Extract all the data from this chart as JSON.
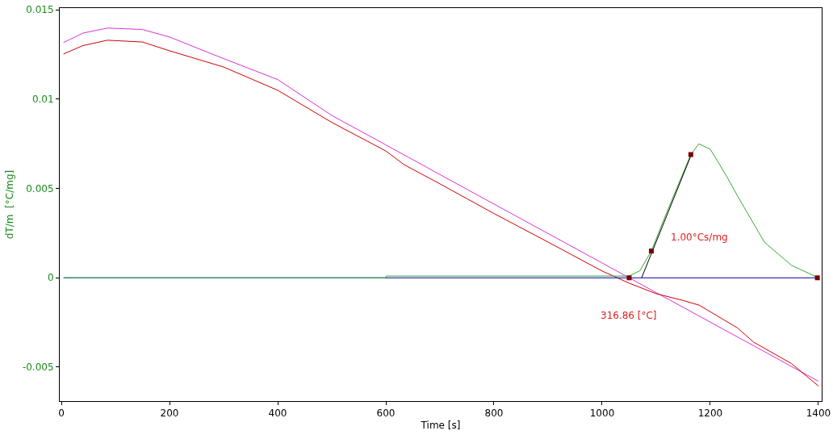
{
  "chart_data": {
    "type": "line",
    "xlabel": "Time [s]",
    "ylabel": "dT/m  [°C/mg]",
    "xlim": [
      -3,
      1406
    ],
    "ylim": [
      -0.0069,
      0.0151
    ],
    "xticks": [
      0,
      200,
      400,
      600,
      800,
      1000,
      1200,
      1400
    ],
    "yticks": [
      -0.005,
      0,
      0.005,
      0.01,
      0.015
    ],
    "grid": false,
    "annotations": [
      "316.86 [°C]",
      "1.00°Cs/mg"
    ],
    "series": [
      {
        "color": "#d633d6",
        "x": [
          4,
          40,
          85,
          150,
          200,
          300,
          400,
          500,
          600,
          664,
          700,
          800,
          900,
          1000,
          1050,
          1100,
          1200,
          1300,
          1400
        ],
        "values": [
          0.01317,
          0.0137,
          0.01398,
          0.0139,
          0.01348,
          0.01227,
          0.0111,
          0.00909,
          0.00744,
          0.00638,
          0.00578,
          0.00413,
          0.00248,
          0.00083,
          0,
          -0.00083,
          -0.00248,
          -0.00413,
          -0.00579
        ]
      },
      {
        "color": "#cc0000",
        "x": [
          4,
          40,
          85,
          150,
          200,
          300,
          400,
          500,
          600,
          634,
          700,
          800,
          900,
          1000,
          1050,
          1100,
          1150,
          1180,
          1200,
          1250,
          1280,
          1350,
          1400
        ],
        "values": [
          0.01253,
          0.013,
          0.0133,
          0.0132,
          0.01271,
          0.0118,
          0.0105,
          0.0087,
          0.0071,
          0.00633,
          0.00526,
          0.0036,
          0.002,
          0.00038,
          -0.0003,
          -0.00089,
          -0.00127,
          -0.00154,
          -0.0019,
          -0.0028,
          -0.0036,
          -0.0048,
          -0.00606
        ]
      },
      {
        "color": "#0000aa",
        "x": [
          4,
          1400
        ],
        "values": [
          0,
          0
        ]
      },
      {
        "color": "#33aa33",
        "x": [
          4,
          600,
          601,
          1050,
          1070,
          1091,
          1120,
          1164,
          1179,
          1200,
          1230,
          1250,
          1300,
          1350,
          1400
        ],
        "values": [
          0,
          0,
          0.0001,
          0.0001,
          0.0004,
          0.0015,
          0.0037,
          0.0069,
          0.0075,
          0.0072,
          0.0057,
          0.0046,
          0.002,
          0.0007,
          0
        ]
      },
      {
        "color": "#000000",
        "x": [
          1073,
          1165
        ],
        "values": [
          0,
          0.0069
        ]
      },
      {
        "type": "scatter",
        "marker": "square",
        "color": "#7a0000",
        "x": [
          1050,
          1091,
          1164,
          1398
        ],
        "values": [
          0,
          0.0015,
          0.0069,
          0
        ]
      }
    ]
  }
}
